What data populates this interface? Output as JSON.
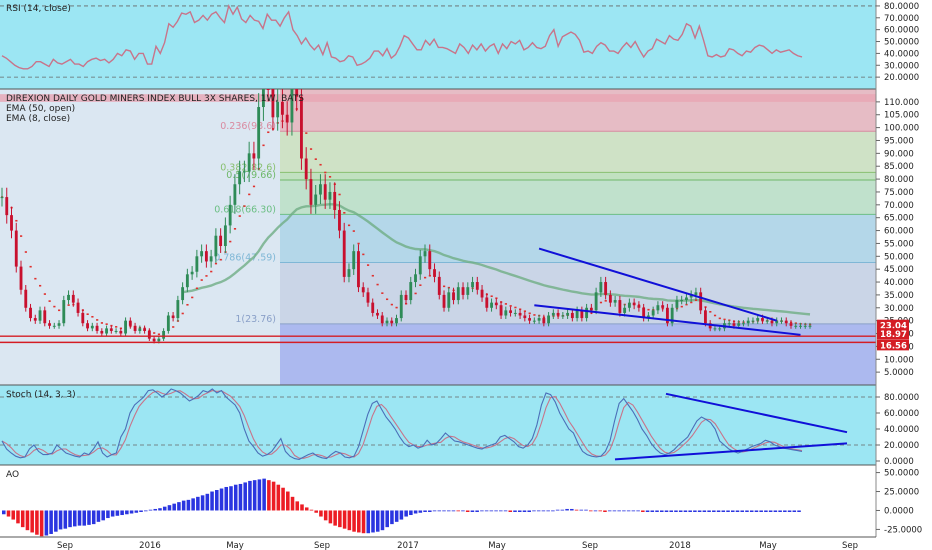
{
  "colors": {
    "rsi_bg": "#9ce6f3",
    "stoch_bg": "#9ce6f3",
    "main_bg": "#dbe7f2",
    "rsi_line": "#c8748a",
    "stoch_k": "#4b6fb8",
    "stoch_d": "#c8748a",
    "up_candle": "#2e8b57",
    "down_candle": "#c8102e",
    "ema50": "#6fae85",
    "ema8": "#e0302d",
    "trend": "#1010d8",
    "ao_up": "#2a35e0",
    "ao_down": "#ec1c24",
    "support": "#d41c24",
    "price_label_bg": "#d41c24"
  },
  "chart_data": [
    {
      "panel": "rsi",
      "type": "line",
      "title": "RSI (14, close)",
      "ylim": [
        10,
        85
      ],
      "y_ticks": [
        "80.0000",
        "70.0000",
        "60.0000",
        "50.0000",
        "40.0000",
        "30.0000",
        "20.0000"
      ],
      "levels": [
        80,
        20
      ],
      "values": [
        38,
        36,
        33,
        30,
        28,
        27,
        27,
        29,
        33,
        33,
        31,
        29,
        35,
        32,
        31,
        33,
        35,
        31,
        31,
        29,
        33,
        35,
        36,
        34,
        35,
        32,
        35,
        40,
        38,
        43,
        42,
        35,
        40,
        40,
        31,
        31,
        46,
        40,
        49,
        65,
        62,
        67,
        74,
        73,
        75,
        66,
        68,
        72,
        68,
        73,
        75,
        70,
        66,
        80,
        73,
        79,
        69,
        66,
        72,
        68,
        67,
        61,
        73,
        68,
        68,
        63,
        70,
        75,
        60,
        55,
        48,
        53,
        47,
        43,
        47,
        39,
        49,
        37,
        36,
        33,
        34,
        38,
        37,
        30,
        31,
        33,
        36,
        42,
        42,
        38,
        44,
        36,
        39,
        46,
        55,
        53,
        48,
        43,
        43,
        51,
        47,
        52,
        45,
        45,
        44,
        42,
        40,
        48,
        45,
        40,
        47,
        43,
        48,
        42,
        46,
        48,
        40,
        48,
        44,
        50,
        48,
        51,
        43,
        45,
        49,
        45,
        44,
        46,
        55,
        60,
        46,
        54,
        56,
        58,
        56,
        51,
        41,
        42,
        40,
        46,
        49,
        47,
        42,
        42,
        40,
        45,
        49,
        45,
        50,
        43,
        37,
        42,
        44,
        52,
        50,
        48,
        55,
        52,
        51,
        56,
        65,
        63,
        53,
        63,
        51,
        38,
        37,
        39,
        37,
        38,
        44,
        43,
        40,
        38,
        42,
        41,
        45,
        47,
        46,
        43,
        40,
        43,
        41,
        42,
        43,
        40,
        38,
        37
      ]
    },
    {
      "panel": "price",
      "type": "candlestick",
      "title": "DIREXION DAILY GOLD MINERS INDEX BULL 3X SHARES, 1W, BATS",
      "legend": [
        "EMA (50, open)",
        "EMA (8, close)"
      ],
      "ylim": [
        0,
        115
      ],
      "y_ticks": [
        "110.000",
        "105.000",
        "100.000",
        "95.000",
        "90.000",
        "85.000",
        "80.000",
        "75.000",
        "70.000",
        "65.000",
        "60.000",
        "55.000",
        "50.000",
        "45.000",
        "40.000",
        "35.000",
        "30.000",
        "25.000",
        "20.000",
        "15.000",
        "10.000",
        "5.0000"
      ],
      "x_labels": [
        "Sep",
        "2016",
        "May",
        "Sep",
        "2017",
        "May",
        "Sep",
        "2018",
        "May",
        "Sep"
      ],
      "close": [
        73,
        66,
        60,
        46,
        37,
        30,
        26,
        25,
        29,
        24,
        23,
        23,
        24,
        33,
        35,
        32,
        28,
        24,
        22,
        23,
        21,
        20,
        22,
        21,
        21,
        20,
        25,
        23,
        21,
        22,
        21,
        18,
        17,
        18,
        21,
        27,
        26,
        33,
        38,
        43,
        44,
        50,
        52,
        48,
        50,
        58,
        54,
        62,
        70,
        78,
        83,
        83,
        90,
        88,
        108,
        125,
        116,
        104,
        110,
        105,
        102,
        118,
        112,
        88,
        80,
        70,
        74,
        78,
        72,
        75,
        68,
        60,
        42,
        45,
        52,
        38,
        36,
        32,
        28,
        27,
        24,
        25,
        24,
        26,
        35,
        33,
        40,
        43,
        50,
        52,
        45,
        42,
        35,
        30,
        36,
        33,
        38,
        35,
        38,
        40,
        37,
        34,
        30,
        32,
        31,
        27,
        29,
        28,
        28,
        27,
        26,
        25,
        25,
        26,
        24,
        27,
        28,
        27,
        27,
        28,
        26,
        29,
        26,
        30,
        29,
        36,
        40,
        35,
        32,
        33,
        28,
        30,
        32,
        31,
        30,
        26,
        27,
        29,
        31,
        30,
        24,
        30,
        33,
        33,
        34,
        35,
        36,
        29,
        24,
        22,
        22,
        22,
        24,
        24,
        23,
        24,
        24,
        25,
        25,
        26,
        25,
        25,
        24,
        25,
        25,
        24,
        23,
        23,
        23,
        23,
        23
      ],
      "ema50": [
        null,
        null,
        null,
        null,
        null,
        null,
        null,
        null,
        null,
        null,
        null,
        null,
        null,
        null,
        null,
        null,
        null,
        null,
        null,
        null,
        null,
        null,
        null,
        null,
        null,
        null,
        null,
        null,
        null,
        null,
        null,
        null,
        null,
        null,
        null,
        null,
        null,
        null,
        null,
        null,
        null,
        null,
        null,
        null,
        null,
        null,
        null,
        null,
        null,
        null,
        null,
        null,
        null,
        null,
        null,
        null,
        null,
        null,
        null,
        null,
        null,
        null,
        null,
        null,
        null,
        null,
        null,
        null,
        null,
        null,
        null,
        null,
        null,
        null,
        null,
        null,
        null,
        null,
        null,
        null,
        null,
        null,
        null,
        null,
        null,
        null,
        null,
        null,
        null,
        null,
        null,
        null,
        null,
        null,
        null,
        null,
        null,
        null,
        null,
        null,
        null,
        null,
        null,
        null,
        null,
        null,
        null,
        null,
        null,
        null,
        null,
        null,
        null,
        null,
        null,
        null,
        null,
        null,
        null,
        null,
        null,
        null,
        null,
        null,
        null,
        null,
        null,
        null,
        null,
        null,
        null,
        null,
        null,
        null,
        null,
        null,
        null,
        null,
        null,
        null,
        null,
        null,
        null,
        null,
        null,
        null,
        null,
        null,
        null,
        null,
        null,
        null,
        null,
        null,
        null,
        null,
        null,
        null,
        null,
        null,
        null,
        null,
        null,
        null,
        null,
        null,
        null,
        null,
        null,
        null,
        null
      ],
      "ema8": [],
      "fib_levels": [
        {
          "label": "0.236(98.6)",
          "value": 98.6
        },
        {
          "label": "0.382(82.6)",
          "value": 82.6
        },
        {
          "label": "0.5(79.66)",
          "value": 79.66
        },
        {
          "label": "0.618(66.30)",
          "value": 66.3
        },
        {
          "label": "0.786(47.59)",
          "value": 47.59
        },
        {
          "label": "1(23.76)",
          "value": 23.76
        }
      ],
      "support_levels": [
        18.97,
        16.56
      ],
      "price_labels": [
        "23.04",
        "18.97",
        "16.56"
      ],
      "last_price": 23.04
    },
    {
      "panel": "stoch",
      "type": "line",
      "title": "Stoch (14, 3, 3)",
      "ylim": [
        -5,
        95
      ],
      "y_ticks": [
        "80.0000",
        "60.0000",
        "40.0000",
        "20.0000",
        "0.0000"
      ],
      "levels": [
        80,
        20
      ],
      "k": [
        25,
        15,
        10,
        6,
        4,
        5,
        15,
        20,
        12,
        8,
        8,
        10,
        20,
        15,
        10,
        8,
        6,
        5,
        10,
        8,
        15,
        24,
        10,
        5,
        8,
        10,
        30,
        40,
        60,
        70,
        75,
        80,
        88,
        89,
        85,
        80,
        84,
        90,
        88,
        85,
        80,
        75,
        78,
        82,
        88,
        86,
        90,
        85,
        88,
        80,
        75,
        70,
        60,
        40,
        25,
        18,
        10,
        6,
        8,
        12,
        20,
        28,
        12,
        6,
        3,
        2,
        5,
        8,
        10,
        6,
        4,
        3,
        8,
        12,
        10,
        5,
        4,
        6,
        18,
        38,
        58,
        72,
        75,
        65,
        55,
        48,
        40,
        30,
        22,
        18,
        20,
        16,
        18,
        26,
        20,
        22,
        28,
        35,
        30,
        25,
        24,
        22,
        20,
        18,
        16,
        15,
        18,
        20,
        22,
        30,
        32,
        28,
        24,
        18,
        16,
        20,
        28,
        45,
        70,
        85,
        83,
        74,
        60,
        50,
        40,
        35,
        22,
        12,
        8,
        6,
        5,
        6,
        12,
        25,
        50,
        72,
        78,
        70,
        62,
        52,
        40,
        32,
        22,
        15,
        10,
        8,
        10,
        14,
        20,
        25,
        30,
        40,
        50,
        55,
        52,
        48,
        40,
        25,
        20,
        15,
        12,
        10,
        12,
        15,
        18,
        20,
        22,
        26,
        24,
        20,
        18,
        16,
        15,
        14,
        13,
        12
      ]
    },
    {
      "panel": "ao",
      "type": "bar",
      "title": "AO",
      "ylim": [
        -35,
        60
      ],
      "y_ticks": [
        "50.0000",
        "25.0000",
        "0.0000",
        "-25.0000"
      ],
      "values": [
        -5,
        -8,
        -12,
        -17,
        -22,
        -26,
        -29,
        -32,
        -34,
        -33,
        -31,
        -28,
        -25,
        -24,
        -22,
        -21,
        -20,
        -20,
        -19,
        -18,
        -15,
        -13,
        -10,
        -8,
        -7,
        -6,
        -5,
        -4,
        -3,
        -2,
        -1,
        1,
        2,
        3,
        5,
        7,
        9,
        11,
        13,
        14,
        16,
        18,
        20,
        22,
        25,
        27,
        29,
        31,
        32,
        34,
        35,
        37,
        39,
        40,
        41,
        42,
        40,
        38,
        34,
        30,
        25,
        18,
        12,
        8,
        4,
        1,
        -3,
        -8,
        -13,
        -17,
        -20,
        -22,
        -24,
        -26,
        -28,
        -29,
        -30,
        -30,
        -29,
        -28,
        -26,
        -22,
        -18,
        -15,
        -12,
        -8,
        -6,
        -4,
        -3,
        -2,
        -2,
        -1,
        -1,
        -1,
        -1,
        0,
        -1,
        -1,
        -2,
        -2,
        -2,
        -1,
        -1,
        -1,
        -1,
        -1,
        -1,
        -2,
        -2,
        -2,
        -2,
        -2,
        -1,
        -1,
        -1,
        -1,
        0,
        1,
        1,
        2,
        2,
        1,
        1,
        1,
        0,
        0,
        -1,
        -2,
        -1,
        -1,
        -1,
        -1,
        -1,
        -1,
        -1,
        -2,
        -2,
        -2,
        -2,
        -2,
        -2,
        -2,
        -2,
        -2,
        -2,
        -2,
        -2,
        -2,
        -2,
        -2,
        -2,
        -2,
        -2,
        -2,
        -2,
        -2,
        -2,
        -2,
        -2,
        -2,
        -2,
        -2,
        -2,
        -2,
        -2,
        -2,
        -2,
        -2,
        -2
      ]
    }
  ]
}
